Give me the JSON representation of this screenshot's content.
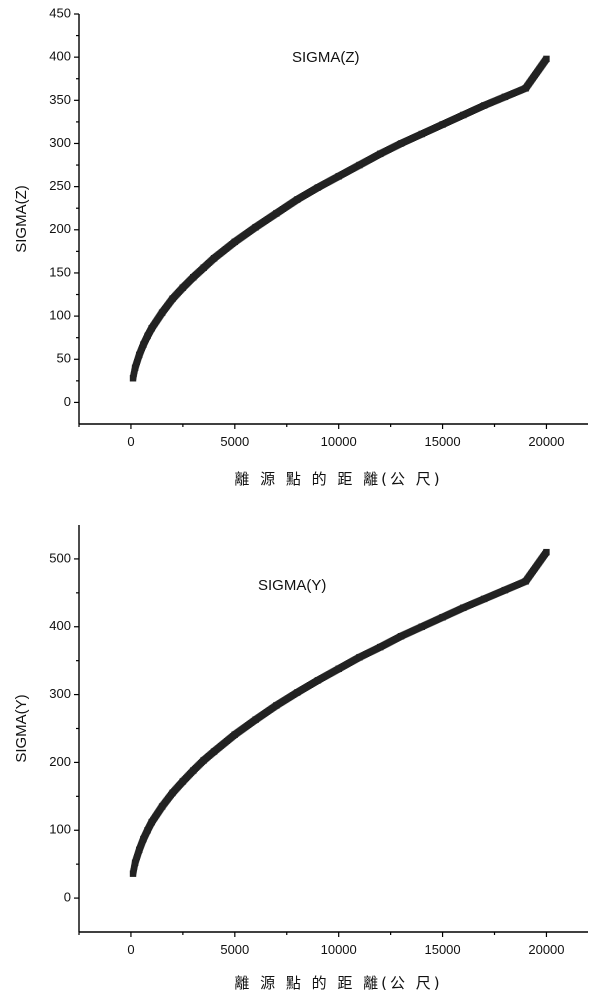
{
  "chart_data": [
    {
      "type": "scatter",
      "ylabel": "SIGMA(Z)",
      "xlabel": "離 源 點 的 距 離(公 尺)",
      "series_label": "SIGMA(Z)",
      "xlim": [
        -2500,
        22000
      ],
      "ylim": [
        -25,
        450
      ],
      "xticks": [
        0,
        5000,
        10000,
        15000,
        20000
      ],
      "yticks": [
        0,
        50,
        100,
        150,
        200,
        250,
        300,
        350,
        400,
        450
      ],
      "marker_color": "#222222",
      "series": [
        {
          "name": "SIGMA(Z)",
          "x": [
            100,
            200,
            400,
            600,
            800,
            1000,
            1500,
            2000,
            2500,
            3000,
            3500,
            4000,
            5000,
            6000,
            7000,
            8000,
            9000,
            10000,
            11000,
            12000,
            13000,
            14000,
            15000,
            16000,
            17000,
            18000,
            19000,
            20000
          ],
          "y": [
            28,
            40,
            55,
            67,
            77,
            86,
            104,
            120,
            133,
            145,
            156,
            167,
            186,
            203,
            219,
            235,
            249,
            262,
            275,
            288,
            300,
            311,
            322,
            333,
            344,
            354,
            364,
            398
          ]
        }
      ]
    },
    {
      "type": "scatter",
      "ylabel": "SIGMA(Y)",
      "xlabel": "離 源 點 的 距 離(公 尺)",
      "series_label": "SIGMA(Y)",
      "xlim": [
        -2500,
        22000
      ],
      "ylim": [
        -50,
        550
      ],
      "xticks": [
        0,
        5000,
        10000,
        15000,
        20000
      ],
      "yticks": [
        0,
        100,
        200,
        300,
        400,
        500
      ],
      "marker_color": "#222222",
      "series": [
        {
          "name": "SIGMA(Y)",
          "x": [
            100,
            200,
            400,
            600,
            800,
            1000,
            1500,
            2000,
            2500,
            3000,
            3500,
            4000,
            5000,
            6000,
            7000,
            8000,
            9000,
            10000,
            11000,
            12000,
            13000,
            14000,
            15000,
            16000,
            17000,
            18000,
            19000,
            20000
          ],
          "y": [
            36,
            52,
            71,
            87,
            100,
            112,
            135,
            155,
            172,
            188,
            203,
            216,
            241,
            263,
            284,
            303,
            321,
            338,
            355,
            370,
            386,
            400,
            414,
            428,
            441,
            454,
            467,
            510
          ]
        }
      ]
    }
  ]
}
